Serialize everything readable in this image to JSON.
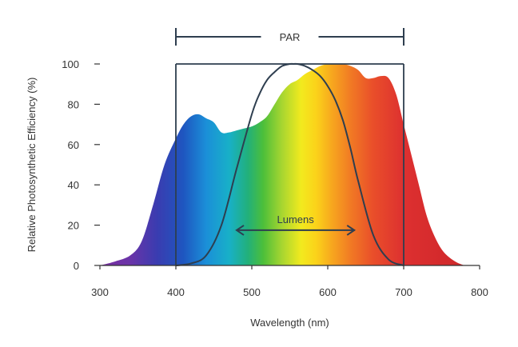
{
  "chart_data": {
    "type": "area",
    "xlabel": "Wavelength (nm)",
    "ylabel": "Relative Photosynthetic Efficiency (%)",
    "xlim": [
      300,
      800
    ],
    "ylim": [
      0,
      100
    ],
    "xticks": [
      300,
      400,
      500,
      600,
      700,
      800
    ],
    "yticks": [
      0,
      20,
      40,
      60,
      80,
      100
    ],
    "grid": false,
    "series": [
      {
        "kind": "area",
        "fill": "visible-spectrum-gradient",
        "x": [
          300,
          320,
          340,
          355,
          370,
          385,
          400,
          410,
          420,
          430,
          440,
          450,
          460,
          470,
          480,
          490,
          500,
          510,
          520,
          530,
          540,
          550,
          560,
          570,
          580,
          590,
          600,
          610,
          620,
          630,
          640,
          650,
          660,
          670,
          680,
          690,
          700,
          710,
          720,
          730,
          740,
          750,
          760,
          770,
          780
        ],
        "y": [
          0,
          2,
          5,
          12,
          30,
          50,
          63,
          70,
          74,
          75,
          73,
          71,
          66,
          66,
          67,
          68,
          69,
          71,
          74,
          80,
          86,
          90,
          92,
          95,
          97,
          99,
          100,
          100,
          100,
          99,
          97,
          93,
          93,
          94,
          93,
          85,
          70,
          55,
          40,
          25,
          15,
          8,
          4,
          1.5,
          0
        ]
      },
      {
        "kind": "line",
        "color": "#2e3e4f",
        "x": [
          400,
          420,
          440,
          460,
          480,
          500,
          510,
          520,
          530,
          540,
          550,
          555,
          560,
          570,
          580,
          590,
          600,
          610,
          620,
          630,
          640,
          660,
          680,
          700
        ],
        "y": [
          0,
          1,
          5,
          20,
          48,
          75,
          85,
          92,
          96,
          99,
          100,
          100,
          100,
          99,
          97,
          94,
          89,
          82,
          72,
          58,
          42,
          15,
          3,
          0
        ]
      }
    ],
    "annotations": [
      {
        "label": "PAR",
        "from": 400,
        "to": 700,
        "style": "bracket-top"
      },
      {
        "label": "Lumens",
        "from": 480,
        "to": 635,
        "y": 17.5,
        "style": "double-arrow"
      }
    ]
  }
}
